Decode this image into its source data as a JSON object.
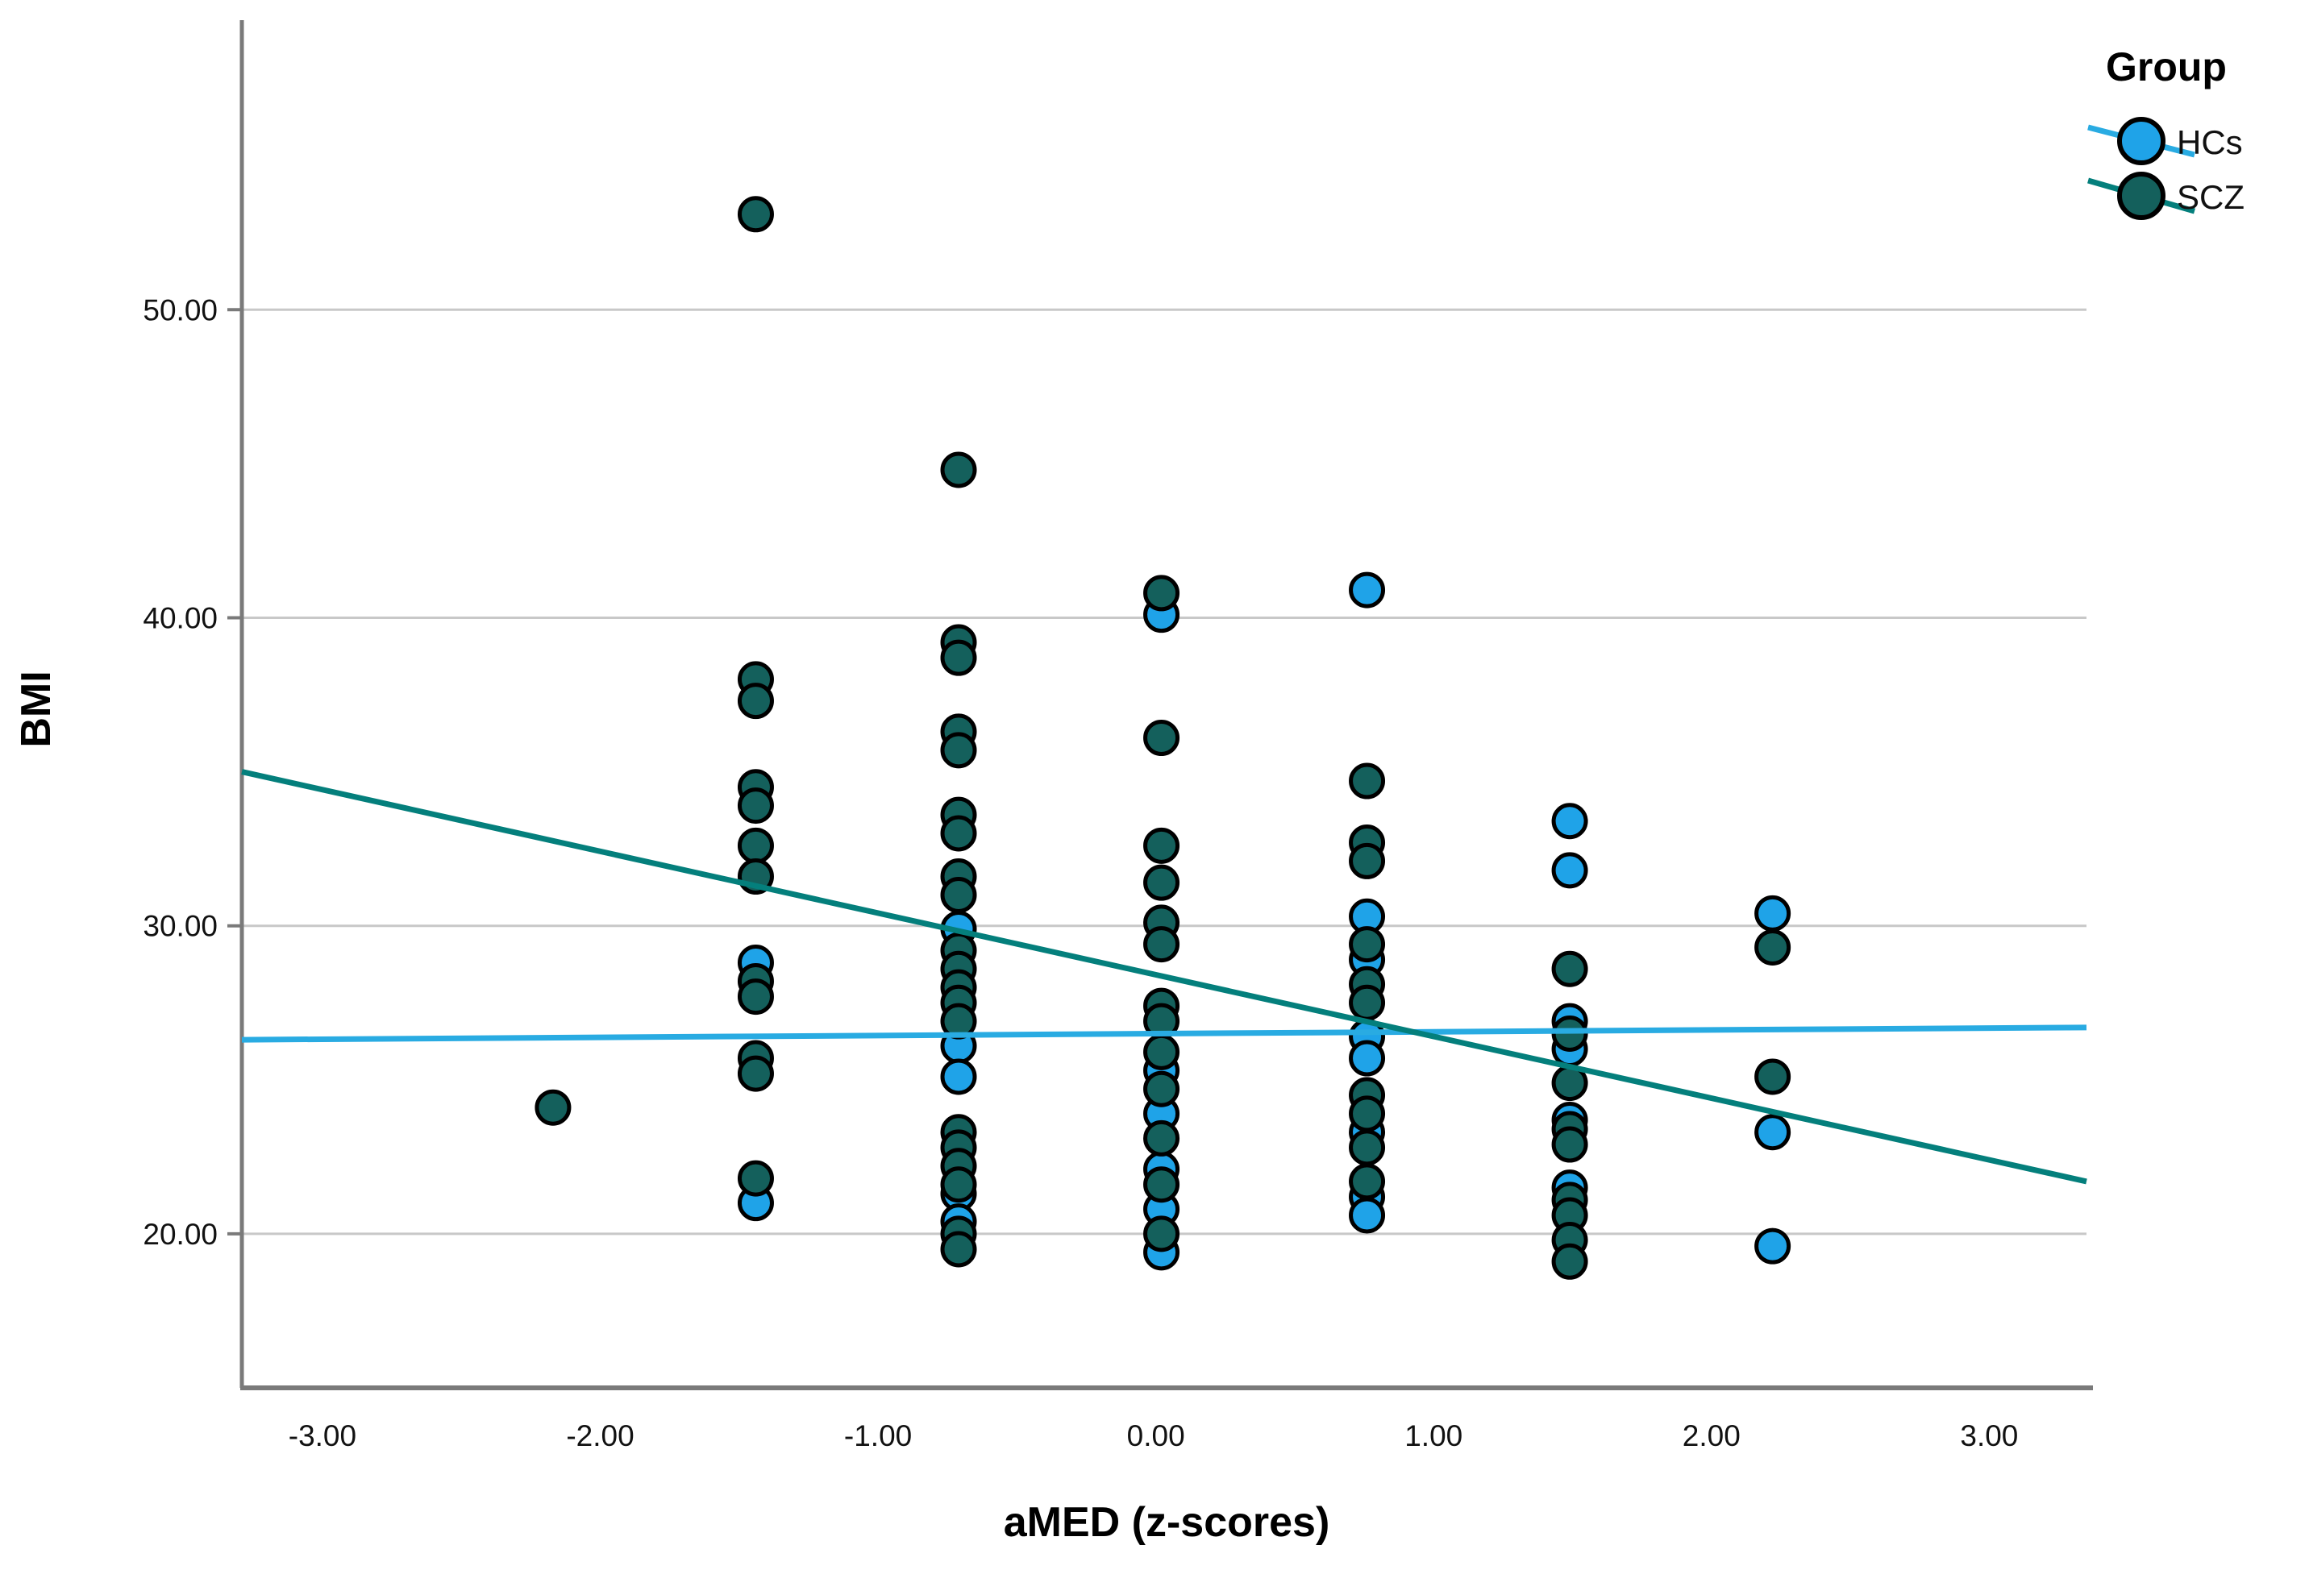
{
  "figure": {
    "background": "#ffffff",
    "axis_color": "#7a7a7a",
    "grid_color": "#c8c8c8"
  },
  "chart_data": {
    "type": "scatter",
    "title": "",
    "xlabel": "aMED (z-scores)",
    "ylabel": "BMI",
    "xlim": [
      -3.29,
      3.35
    ],
    "ylim": [
      15.0,
      59.4
    ],
    "x_ticks": [
      -3,
      -2,
      -1,
      0,
      1,
      2,
      3
    ],
    "x_tick_labels": [
      "-3.00",
      "-2.00",
      "-1.00",
      "0.00",
      "1.00",
      "2.00",
      "3.00"
    ],
    "y_ticks": [
      20,
      30,
      40,
      50
    ],
    "y_tick_labels": [
      "20.00",
      "30.00",
      "40.00",
      "50.00"
    ],
    "grid": "horizontal-only",
    "legend": {
      "title": "Group",
      "position": "top-right-outside",
      "entries": [
        {
          "label": "HCs",
          "marker_color": "#1fa3e8",
          "line_color": "#29abe2"
        },
        {
          "label": "SCZ",
          "marker_color": "#14605c",
          "line_color": "#047f7c"
        }
      ]
    },
    "series": [
      {
        "name": "HCs",
        "marker_color": "#1fa3e8",
        "marker_outline": "#000000",
        "points": [
          [
            -1.44,
            28.8
          ],
          [
            -1.44,
            21.0
          ],
          [
            -0.71,
            29.9
          ],
          [
            -0.71,
            26.1
          ],
          [
            -0.71,
            25.1
          ],
          [
            -0.71,
            21.3
          ],
          [
            -0.71,
            20.4
          ],
          [
            0.02,
            40.1
          ],
          [
            0.02,
            25.3
          ],
          [
            0.02,
            23.9
          ],
          [
            0.02,
            22.1
          ],
          [
            0.02,
            20.8
          ],
          [
            0.02,
            19.4
          ],
          [
            0.76,
            40.9
          ],
          [
            0.76,
            30.3
          ],
          [
            0.76,
            28.9
          ],
          [
            0.76,
            26.4
          ],
          [
            0.76,
            25.7
          ],
          [
            0.76,
            23.3
          ],
          [
            0.76,
            21.2
          ],
          [
            0.76,
            20.6
          ],
          [
            1.49,
            33.4
          ],
          [
            1.49,
            31.8
          ],
          [
            1.49,
            26.9
          ],
          [
            1.49,
            26.0
          ],
          [
            1.49,
            23.7
          ],
          [
            1.49,
            21.5
          ],
          [
            2.22,
            30.4
          ],
          [
            2.22,
            23.3
          ],
          [
            2.22,
            19.6
          ]
        ],
        "fit_line": {
          "color": "#29abe2",
          "x": [
            -3.29,
            3.35
          ],
          "y": [
            26.3,
            26.7
          ]
        }
      },
      {
        "name": "SCZ",
        "marker_color": "#14605c",
        "marker_outline": "#000000",
        "points": [
          [
            -2.17,
            24.1
          ],
          [
            -1.44,
            53.1
          ],
          [
            -1.44,
            38.0
          ],
          [
            -1.44,
            37.3
          ],
          [
            -1.44,
            34.5
          ],
          [
            -1.44,
            33.9
          ],
          [
            -1.44,
            32.6
          ],
          [
            -1.44,
            31.6
          ],
          [
            -1.44,
            28.2
          ],
          [
            -1.44,
            27.7
          ],
          [
            -1.44,
            25.7
          ],
          [
            -1.44,
            25.2
          ],
          [
            -1.44,
            21.8
          ],
          [
            -0.71,
            44.8
          ],
          [
            -0.71,
            39.2
          ],
          [
            -0.71,
            38.7
          ],
          [
            -0.71,
            36.3
          ],
          [
            -0.71,
            35.7
          ],
          [
            -0.71,
            33.6
          ],
          [
            -0.71,
            33.0
          ],
          [
            -0.71,
            31.6
          ],
          [
            -0.71,
            31.0
          ],
          [
            -0.71,
            29.2
          ],
          [
            -0.71,
            28.6
          ],
          [
            -0.71,
            28.0
          ],
          [
            -0.71,
            27.5
          ],
          [
            -0.71,
            26.9
          ],
          [
            -0.71,
            23.3
          ],
          [
            -0.71,
            22.8
          ],
          [
            -0.71,
            22.2
          ],
          [
            -0.71,
            21.6
          ],
          [
            -0.71,
            20.0
          ],
          [
            -0.71,
            19.5
          ],
          [
            0.02,
            40.8
          ],
          [
            0.02,
            36.1
          ],
          [
            0.02,
            32.6
          ],
          [
            0.02,
            31.4
          ],
          [
            0.02,
            30.1
          ],
          [
            0.02,
            29.4
          ],
          [
            0.02,
            27.4
          ],
          [
            0.02,
            26.9
          ],
          [
            0.02,
            25.9
          ],
          [
            0.02,
            24.7
          ],
          [
            0.02,
            23.1
          ],
          [
            0.02,
            21.6
          ],
          [
            0.02,
            20.0
          ],
          [
            0.76,
            34.7
          ],
          [
            0.76,
            32.7
          ],
          [
            0.76,
            32.1
          ],
          [
            0.76,
            29.4
          ],
          [
            0.76,
            28.1
          ],
          [
            0.76,
            27.5
          ],
          [
            0.76,
            24.5
          ],
          [
            0.76,
            23.9
          ],
          [
            0.76,
            22.8
          ],
          [
            0.76,
            21.7
          ],
          [
            1.49,
            28.6
          ],
          [
            1.49,
            26.5
          ],
          [
            1.49,
            24.9
          ],
          [
            1.49,
            23.4
          ],
          [
            1.49,
            22.9
          ],
          [
            1.49,
            21.1
          ],
          [
            1.49,
            20.6
          ],
          [
            1.49,
            19.8
          ],
          [
            1.49,
            19.1
          ],
          [
            2.22,
            29.3
          ],
          [
            2.22,
            25.1
          ]
        ],
        "fit_line": {
          "color": "#047f7c",
          "x": [
            -3.29,
            3.35
          ],
          "y": [
            35.0,
            21.7
          ]
        }
      }
    ]
  }
}
